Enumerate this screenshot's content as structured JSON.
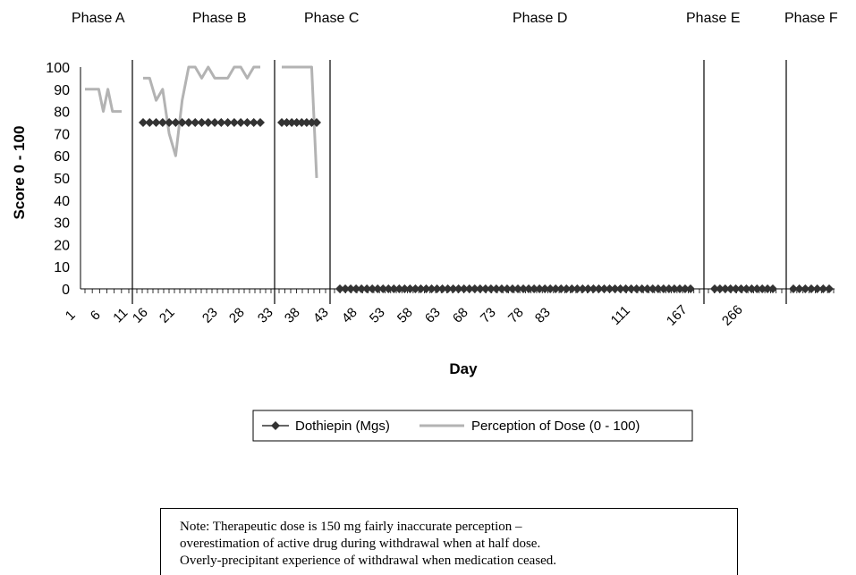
{
  "chart_data": {
    "type": "line",
    "ylabel": "Score 0 - 100",
    "xlabel": "Day",
    "ylim": [
      0,
      100
    ],
    "yticks": [
      0,
      10,
      20,
      30,
      40,
      50,
      60,
      70,
      80,
      90,
      100
    ],
    "phases": [
      "Phase A",
      "Phase B",
      "Phase C",
      "Phase D",
      "Phase E",
      "Phase F"
    ],
    "x_tick_labels": [
      "1",
      "6",
      "11",
      "16",
      "21",
      "23",
      "28",
      "33",
      "38",
      "43",
      "48",
      "53",
      "58",
      "63",
      "68",
      "73",
      "78",
      "83",
      "111",
      "167",
      "266"
    ],
    "series": [
      {
        "name": "Dothiepin (Mgs)",
        "color": "#333333",
        "marker": "diamond",
        "segments": [
          {
            "phase": "Phase B",
            "values": [
              75,
              75,
              75,
              75,
              75,
              75,
              75,
              75,
              75,
              75,
              75,
              75,
              75,
              75,
              75,
              75,
              75,
              75,
              75
            ]
          },
          {
            "phase": "Phase C",
            "values": [
              75,
              75,
              75,
              75,
              75,
              75,
              75,
              75
            ]
          },
          {
            "phase": "Phase D",
            "values": [
              0,
              0,
              0,
              0,
              0,
              0,
              0,
              0,
              0,
              0,
              0,
              0,
              0,
              0,
              0,
              0,
              0,
              0,
              0,
              0,
              0,
              0,
              0,
              0,
              0,
              0,
              0,
              0,
              0,
              0,
              0,
              0,
              0,
              0,
              0,
              0,
              0,
              0,
              0,
              0,
              0,
              0,
              0,
              0,
              0,
              0,
              0,
              0,
              0,
              0,
              0,
              0,
              0,
              0,
              0,
              0,
              0,
              0,
              0,
              0,
              0,
              0,
              0,
              0,
              0,
              0
            ]
          },
          {
            "phase": "Phase E",
            "values": [
              0,
              0,
              0,
              0,
              0,
              0,
              0,
              0,
              0,
              0,
              0,
              0
            ]
          },
          {
            "phase": "Phase F",
            "values": [
              0,
              0,
              0,
              0,
              0,
              0,
              0
            ]
          }
        ]
      },
      {
        "name": "Perception of Dose (0 - 100)",
        "color": "#b3b3b3",
        "segments": [
          {
            "phase": "Phase A",
            "values": [
              90,
              90,
              90,
              90,
              80,
              90,
              80,
              80,
              80
            ]
          },
          {
            "phase": "Phase B",
            "values": [
              95,
              95,
              85,
              90,
              70,
              60,
              85,
              100,
              100,
              95,
              100,
              95,
              95,
              95,
              100,
              100,
              95,
              100,
              100
            ]
          },
          {
            "phase": "Phase C",
            "values": [
              100,
              100,
              100,
              100,
              100,
              100,
              100,
              50
            ]
          }
        ]
      }
    ],
    "legend_position": "bottom-center"
  },
  "note": {
    "lines": [
      "Note: Therapeutic dose is 150 mg fairly inaccurate perception –",
      "overestimation of active drug during withdrawal when at half dose.",
      "Overly-precipitant experience of withdrawal when medication ceased."
    ]
  }
}
